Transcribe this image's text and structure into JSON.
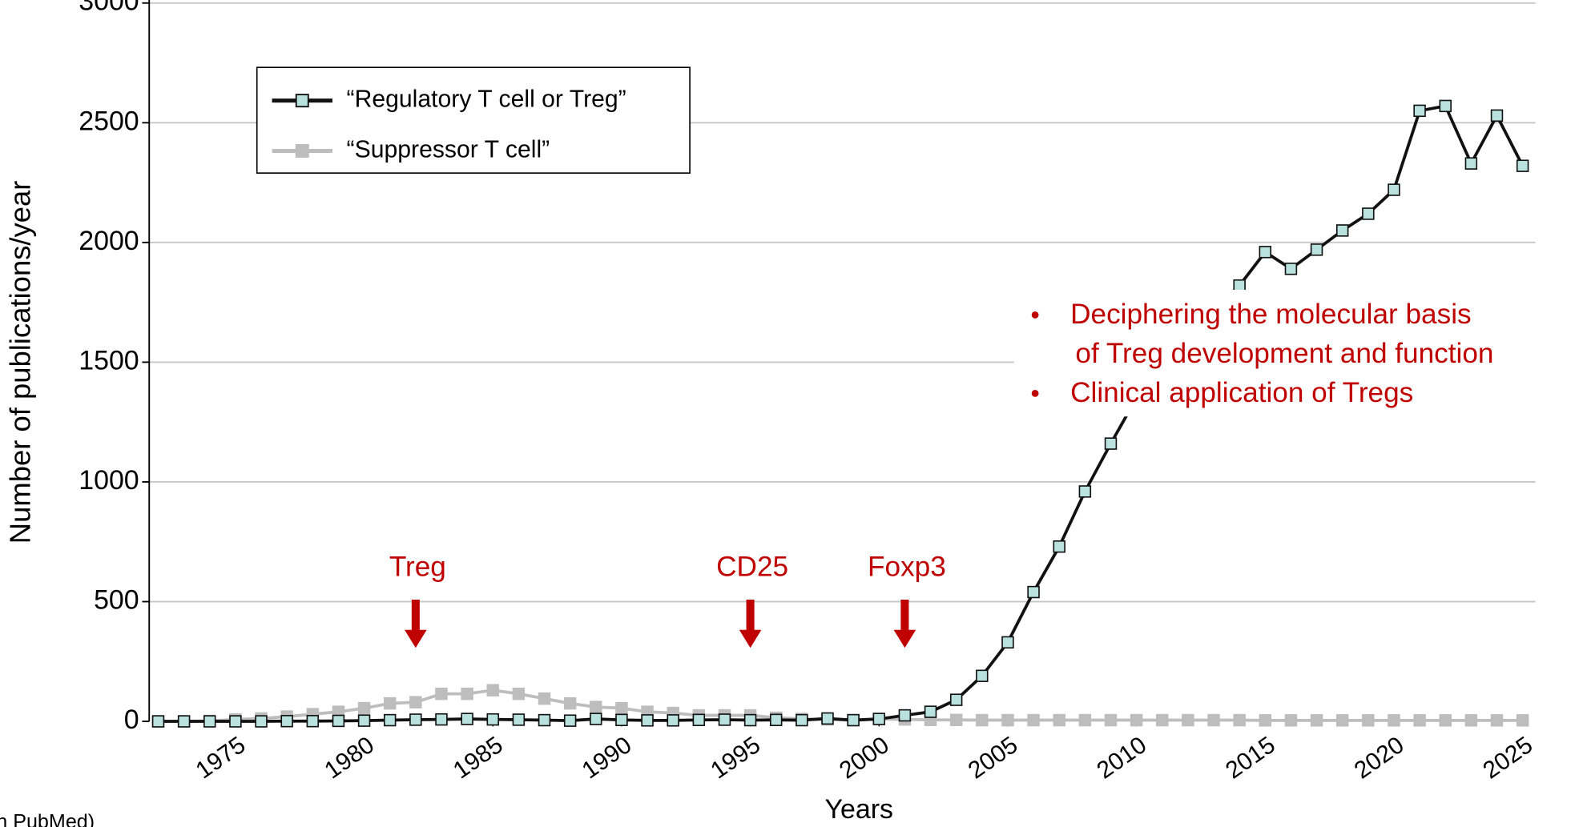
{
  "chart_data": {
    "type": "line",
    "xlabel": "Years",
    "ylabel": "Number of publications/year",
    "source": "n PubMed)",
    "x": [
      1972,
      1973,
      1974,
      1975,
      1976,
      1977,
      1978,
      1979,
      1980,
      1981,
      1982,
      1983,
      1984,
      1985,
      1986,
      1987,
      1988,
      1989,
      1990,
      1991,
      1992,
      1993,
      1994,
      1995,
      1996,
      1997,
      1998,
      1999,
      2000,
      2001,
      2002,
      2003,
      2004,
      2005,
      2006,
      2007,
      2008,
      2009,
      2010,
      2011,
      2012,
      2013,
      2014,
      2015,
      2016,
      2017,
      2018,
      2019,
      2020,
      2021,
      2022,
      2023,
      2024,
      2025
    ],
    "series": [
      {
        "name": "“Regulatory T cell or Treg”",
        "color": "#111111",
        "marker_fill": "#b9e2df",
        "values": [
          0,
          0,
          0,
          0,
          0,
          1,
          1,
          2,
          3,
          5,
          7,
          8,
          10,
          8,
          7,
          5,
          3,
          10,
          6,
          4,
          4,
          6,
          7,
          5,
          6,
          5,
          12,
          5,
          10,
          25,
          40,
          90,
          190,
          330,
          540,
          730,
          960,
          1160,
          1350,
          1500,
          1620,
          1720,
          1820,
          1960,
          1890,
          1970,
          2050,
          2120,
          2220,
          2550,
          2570,
          2330,
          2530,
          2320
        ]
      },
      {
        "name": "“Suppressor T cell”",
        "color": "#bdbdbd",
        "marker_fill": "#bdbdbd",
        "values": [
          0,
          0,
          2,
          8,
          12,
          20,
          30,
          40,
          55,
          75,
          80,
          115,
          115,
          130,
          115,
          95,
          75,
          60,
          55,
          40,
          35,
          25,
          25,
          25,
          15,
          10,
          8,
          5,
          10,
          8,
          6,
          6,
          5,
          5,
          5,
          5,
          5,
          5,
          5,
          5,
          5,
          5,
          5,
          4,
          4,
          4,
          4,
          4,
          4,
          4,
          4,
          4,
          4,
          4
        ]
      }
    ],
    "xlim": [
      1971.65,
      2025.5
    ],
    "xticks": [
      1975,
      1980,
      1985,
      1990,
      1995,
      2000,
      2005,
      2010,
      2015,
      2020,
      2025
    ],
    "ylim": [
      0,
      3000
    ],
    "yticks": [
      0,
      500,
      1000,
      1500,
      2000,
      2500,
      3000
    ],
    "grid": true,
    "legend": "upper left",
    "annotations": [
      {
        "text": "Treg",
        "x": 1982,
        "color": "#c00000"
      },
      {
        "text": "CD25",
        "x": 1995,
        "color": "#c00000"
      },
      {
        "text": "Foxp3",
        "x": 2001,
        "color": "#c00000"
      }
    ],
    "notes": [
      [
        "Deciphering the molecular basis",
        "of Treg development and function"
      ],
      [
        "Clinical application of Tregs"
      ]
    ],
    "notes_color": "#c00000"
  }
}
